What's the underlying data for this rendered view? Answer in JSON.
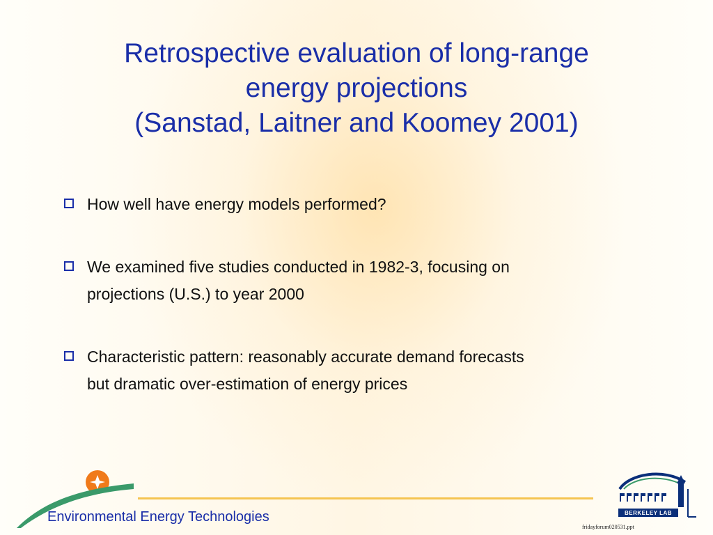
{
  "slide": {
    "title_lines": [
      "Retrospective evaluation of long-range",
      "energy projections",
      "(Sanstad, Laitner and Koomey 2001)"
    ],
    "bullets": [
      {
        "lines": [
          "How well have energy models performed?"
        ]
      },
      {
        "lines": [
          "We examined five studies conducted in 1982-3, focusing on",
          "projections (U.S.) to year 2000"
        ]
      },
      {
        "lines": [
          "Characteristic pattern: reasonably accurate demand forecasts",
          "but dramatic over-estimation of energy prices"
        ]
      }
    ],
    "bullet_icon": "hollow-square-icon"
  },
  "footer": {
    "division_label": "Environmental Energy Technologies",
    "lab_logo_text": "BERKELEY LAB",
    "file_name": "fridayforum020531.ppt"
  },
  "colors": {
    "title": "#1a2ea8",
    "body_text": "#111111",
    "accent_line": "#f5c451",
    "logo_green": "#3a9a6a",
    "logo_orange": "#f07a1a",
    "berkeley_blue": "#0b2f7a"
  }
}
